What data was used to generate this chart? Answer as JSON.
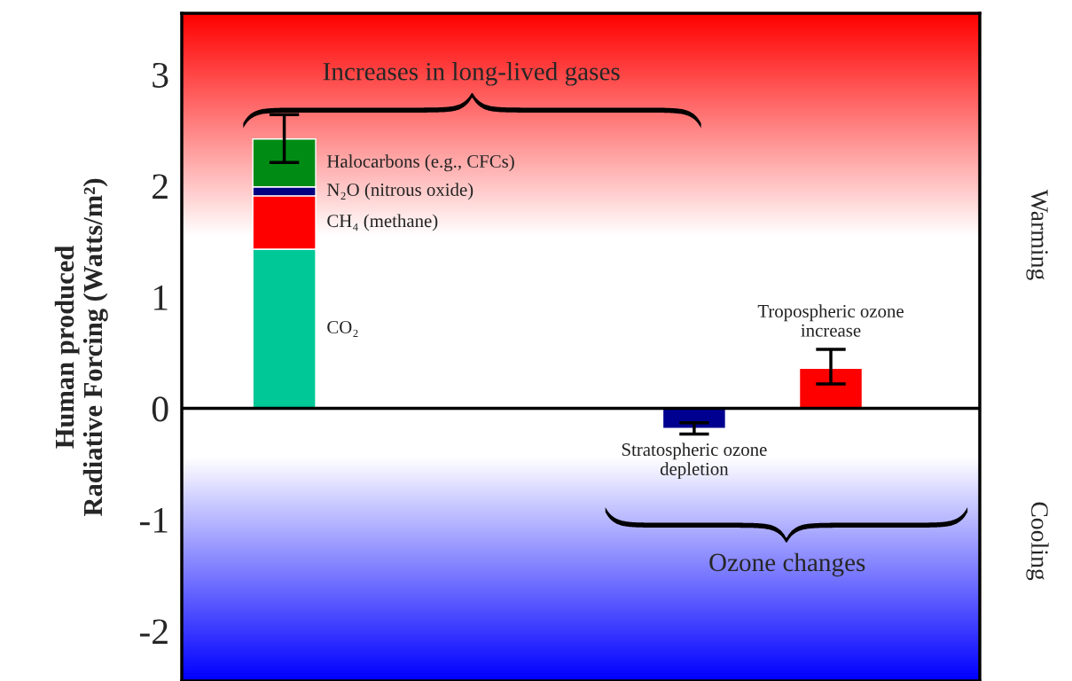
{
  "chart_data": {
    "type": "bar",
    "stacked": true,
    "ylabel": "Human produced\nRadiative Forcing (Watts/m²)",
    "categories": [
      null,
      null,
      null,
      null,
      null
    ],
    "series": [
      {
        "name": "CO₂",
        "color": "#00c896",
        "values": [
          1.43,
          null,
          null,
          null,
          null
        ]
      },
      {
        "name": "CH₄ (methane)",
        "color": "#ff0000",
        "values": [
          0.48,
          null,
          null,
          null,
          null
        ]
      },
      {
        "name": "N₂O (nitrous oxide)",
        "color": "#000080",
        "values": [
          0.08,
          null,
          null,
          null,
          null
        ]
      },
      {
        "name": "Halocarbons (e.g., CFCs)",
        "color": "#008c14",
        "values": [
          0.43,
          null,
          null,
          null,
          null
        ],
        "errors": [
          [
            2.21,
            2.64
          ],
          null,
          null,
          null,
          null
        ]
      },
      {
        "name": "Stratospheric ozone\ndepletion",
        "color": "#000090",
        "values": [
          null,
          null,
          null,
          -0.18,
          null
        ],
        "errors": [
          null,
          null,
          null,
          [
            -0.23,
            -0.13
          ],
          null
        ]
      },
      {
        "name": "Tropospheric ozone\nincrease",
        "color": "#ff0000",
        "values": [
          null,
          null,
          null,
          null,
          0.36
        ],
        "errors": [
          null,
          null,
          null,
          null,
          [
            0.22,
            0.53
          ]
        ]
      }
    ],
    "ylim": [
      -2.45,
      3.55
    ],
    "yticks": [
      -2,
      -1,
      0,
      1,
      2,
      3
    ],
    "ref_lines": [
      {
        "axis": "y",
        "value": 0,
        "color": "#000000"
      }
    ],
    "annotations": [
      "Increases in long-lived gases",
      "Ozone changes",
      "Warming",
      "Cooling"
    ],
    "grid": false,
    "legend": false
  }
}
